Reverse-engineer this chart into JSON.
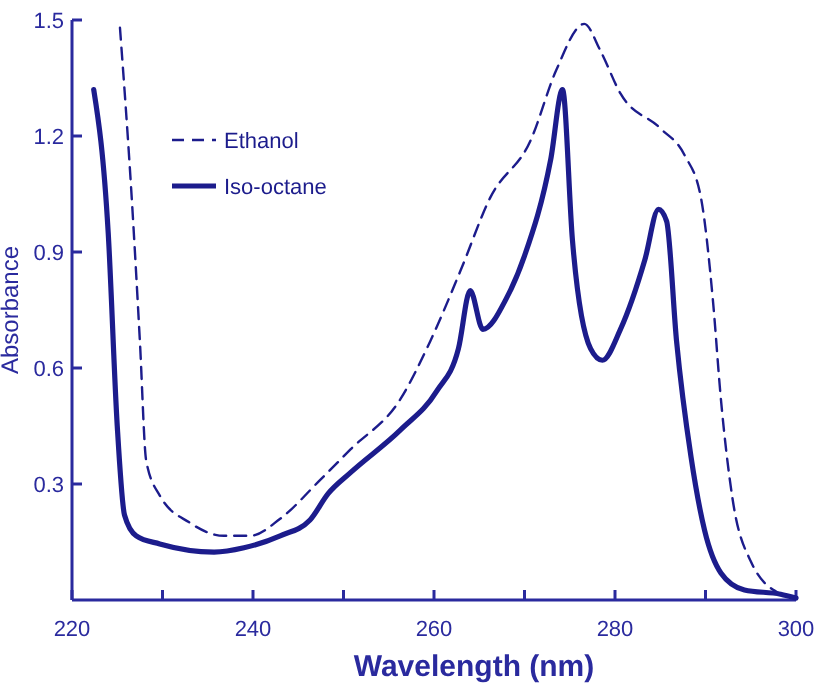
{
  "chart_data": {
    "type": "line",
    "xlabel": "Wavelength (nm)",
    "ylabel": "Absorbance",
    "xlim": [
      220,
      300
    ],
    "ylim": [
      0,
      1.5
    ],
    "xticks": [
      220,
      {
        "value": 230,
        "label": null
      },
      240,
      {
        "value": 250,
        "label": null
      },
      260,
      {
        "value": 270,
        "label": null
      },
      280,
      {
        "value": 290,
        "label": null
      },
      300
    ],
    "yticks": [
      0.3,
      0.6,
      0.9,
      1.2,
      1.5
    ],
    "grid": false,
    "legend": "top left",
    "series": [
      {
        "name": "Ethanol",
        "color": "#1c1c8c",
        "line_style": "dashed",
        "x": [
          225.3,
          226.6,
          227.5,
          228.2,
          229.7,
          233,
          236.8,
          239.7,
          243,
          247.4,
          250.8,
          256.3,
          259.6,
          262.9,
          266.2,
          270.7,
          273.5,
          276.6,
          278.4,
          280.6,
          285,
          287.7,
          289.5,
          290.8,
          291.7,
          293,
          295,
          298.3
        ],
        "values": [
          1.48,
          1.04,
          0.67,
          0.36,
          0.27,
          0.2,
          0.166,
          0.166,
          0.21,
          0.31,
          0.39,
          0.52,
          0.67,
          0.85,
          1.04,
          1.19,
          1.37,
          1.49,
          1.42,
          1.31,
          1.22,
          1.15,
          1.04,
          0.78,
          0.52,
          0.26,
          0.1,
          0.015
        ]
      },
      {
        "name": "Iso-octane",
        "color": "#1c1c8c",
        "line_style": "solid",
        "x": [
          222.4,
          224,
          225,
          225.8,
          227.1,
          229.7,
          235.7,
          239,
          243,
          246.3,
          248.3,
          250.8,
          256.3,
          260.3,
          262.7,
          264,
          265.4,
          268,
          270,
          272.9,
          274.2,
          275.3,
          277.3,
          278.6,
          280.6,
          283.3,
          284.8,
          285.7,
          286.8,
          288.4,
          289.9,
          291.7,
          294.3,
          298.3,
          300
        ],
        "values": [
          1.32,
          0.95,
          0.45,
          0.22,
          0.166,
          0.145,
          0.124,
          0.135,
          0.166,
          0.207,
          0.275,
          0.33,
          0.44,
          0.54,
          0.65,
          0.8,
          0.7,
          0.78,
          0.89,
          1.14,
          1.32,
          0.93,
          0.65,
          0.62,
          0.7,
          0.88,
          1.01,
          0.98,
          0.67,
          0.37,
          0.18,
          0.07,
          0.026,
          0.015,
          0.005
        ]
      }
    ]
  }
}
